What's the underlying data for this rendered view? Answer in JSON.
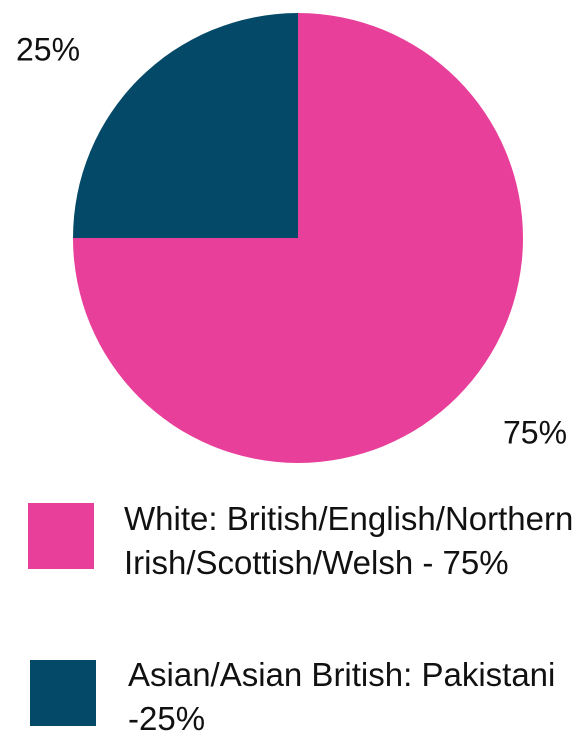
{
  "chart_data": {
    "type": "pie",
    "categories": [
      "White: British/English/Northern Irish/Scottish/Welsh - 75%",
      "Asian/Asian British: Pakistani -25%"
    ],
    "values": [
      75,
      25
    ],
    "value_labels": [
      "75%",
      "25%"
    ],
    "colors": [
      "#e8409a",
      "#044a68"
    ]
  }
}
